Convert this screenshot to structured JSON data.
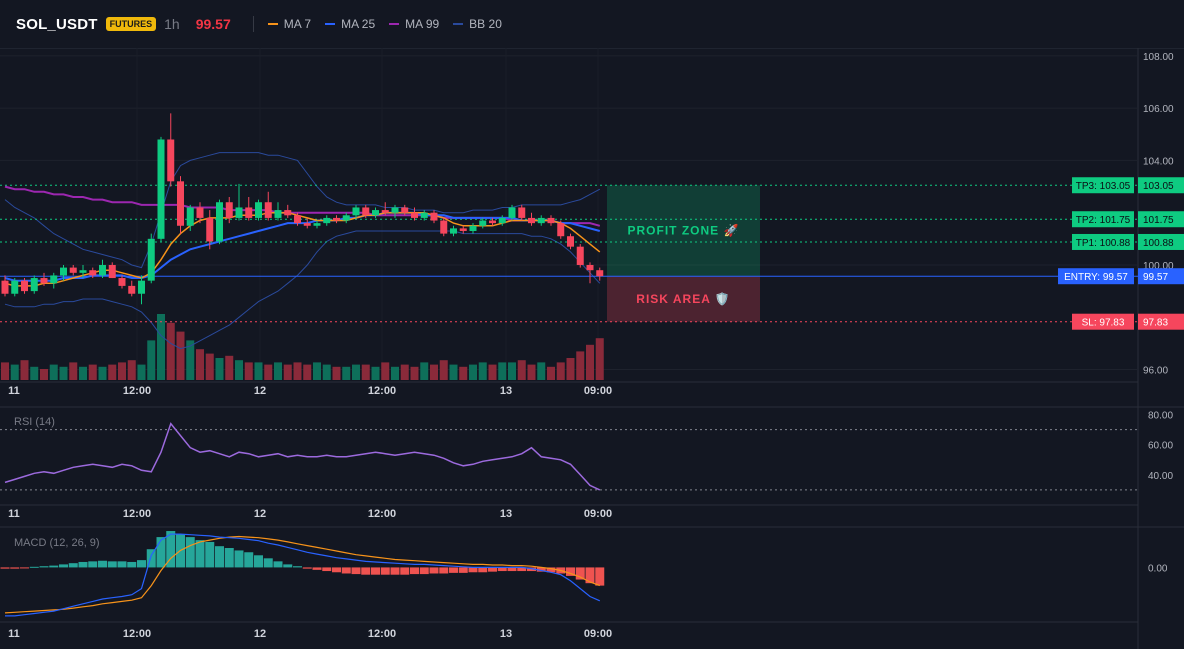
{
  "header": {
    "symbol": "SOL_USDT",
    "badge": "FUTURES",
    "interval": "1h",
    "price": "99.57",
    "legend": [
      {
        "label": "MA 7",
        "color": "#f7931a"
      },
      {
        "label": "MA 25",
        "color": "#2962ff"
      },
      {
        "label": "MA 99",
        "color": "#9c27b0"
      },
      {
        "label": "BB 20",
        "color": "#2a4a9c"
      }
    ]
  },
  "colors": {
    "up": "#0ecb81",
    "down": "#f6465d",
    "tp": "#0ecb81",
    "entry": "#2962ff",
    "sl": "#f6465d",
    "rsi": "#9c6ade",
    "macd_line": "#2962ff",
    "signal_line": "#f7931a"
  },
  "chart_data": [
    {
      "type": "candlestick",
      "price_axis_ticks": [
        "108.00",
        "106.00",
        "104.00",
        "100.00",
        "96.00"
      ],
      "ylim": [
        95.6,
        108.3
      ],
      "time_labels": [
        "11",
        "12:00",
        "12",
        "12:00",
        "13",
        "09:00"
      ],
      "candles": [
        {
          "o": 99.4,
          "h": 99.6,
          "l": 98.8,
          "c": 98.9
        },
        {
          "o": 98.9,
          "h": 99.5,
          "l": 98.8,
          "c": 99.4
        },
        {
          "o": 99.4,
          "h": 99.5,
          "l": 98.9,
          "c": 99.0
        },
        {
          "o": 99.0,
          "h": 99.6,
          "l": 98.9,
          "c": 99.5
        },
        {
          "o": 99.5,
          "h": 99.7,
          "l": 99.2,
          "c": 99.3
        },
        {
          "o": 99.3,
          "h": 99.7,
          "l": 99.1,
          "c": 99.6
        },
        {
          "o": 99.6,
          "h": 100.0,
          "l": 99.4,
          "c": 99.9
        },
        {
          "o": 99.9,
          "h": 100.0,
          "l": 99.6,
          "c": 99.7
        },
        {
          "o": 99.7,
          "h": 100.0,
          "l": 99.5,
          "c": 99.8
        },
        {
          "o": 99.8,
          "h": 99.9,
          "l": 99.5,
          "c": 99.6
        },
        {
          "o": 99.6,
          "h": 100.2,
          "l": 99.5,
          "c": 100.0
        },
        {
          "o": 100.0,
          "h": 100.1,
          "l": 99.5,
          "c": 99.5
        },
        {
          "o": 99.5,
          "h": 99.6,
          "l": 99.1,
          "c": 99.2
        },
        {
          "o": 99.2,
          "h": 99.4,
          "l": 98.8,
          "c": 98.9
        },
        {
          "o": 98.9,
          "h": 99.6,
          "l": 98.5,
          "c": 99.4
        },
        {
          "o": 99.4,
          "h": 101.2,
          "l": 99.3,
          "c": 101.0
        },
        {
          "o": 101.0,
          "h": 104.9,
          "l": 100.9,
          "c": 104.8
        },
        {
          "o": 104.8,
          "h": 105.8,
          "l": 103.0,
          "c": 103.2
        },
        {
          "o": 103.2,
          "h": 103.4,
          "l": 101.2,
          "c": 101.5
        },
        {
          "o": 101.5,
          "h": 102.3,
          "l": 101.3,
          "c": 102.2
        },
        {
          "o": 102.2,
          "h": 102.4,
          "l": 101.6,
          "c": 101.8
        },
        {
          "o": 101.8,
          "h": 102.1,
          "l": 100.6,
          "c": 100.9
        },
        {
          "o": 100.9,
          "h": 102.5,
          "l": 100.8,
          "c": 102.4
        },
        {
          "o": 102.4,
          "h": 102.6,
          "l": 101.6,
          "c": 101.8
        },
        {
          "o": 101.8,
          "h": 103.1,
          "l": 101.7,
          "c": 102.2
        },
        {
          "o": 102.2,
          "h": 102.6,
          "l": 101.7,
          "c": 101.8
        },
        {
          "o": 101.8,
          "h": 102.5,
          "l": 101.7,
          "c": 102.4
        },
        {
          "o": 102.4,
          "h": 102.8,
          "l": 101.7,
          "c": 101.8
        },
        {
          "o": 101.8,
          "h": 102.4,
          "l": 101.7,
          "c": 102.1
        },
        {
          "o": 102.1,
          "h": 102.3,
          "l": 101.8,
          "c": 101.9
        },
        {
          "o": 101.9,
          "h": 102.0,
          "l": 101.5,
          "c": 101.6
        },
        {
          "o": 101.6,
          "h": 101.8,
          "l": 101.4,
          "c": 101.5
        },
        {
          "o": 101.5,
          "h": 101.7,
          "l": 101.4,
          "c": 101.6
        },
        {
          "o": 101.6,
          "h": 101.9,
          "l": 101.5,
          "c": 101.8
        },
        {
          "o": 101.8,
          "h": 101.9,
          "l": 101.6,
          "c": 101.7
        },
        {
          "o": 101.7,
          "h": 102.0,
          "l": 101.6,
          "c": 101.9
        },
        {
          "o": 101.9,
          "h": 102.3,
          "l": 101.8,
          "c": 102.2
        },
        {
          "o": 102.2,
          "h": 102.3,
          "l": 101.8,
          "c": 101.9
        },
        {
          "o": 101.9,
          "h": 102.2,
          "l": 101.8,
          "c": 102.1
        },
        {
          "o": 102.1,
          "h": 102.4,
          "l": 101.9,
          "c": 102.0
        },
        {
          "o": 102.0,
          "h": 102.3,
          "l": 101.8,
          "c": 102.2
        },
        {
          "o": 102.2,
          "h": 102.3,
          "l": 101.9,
          "c": 102.0
        },
        {
          "o": 102.0,
          "h": 102.2,
          "l": 101.7,
          "c": 101.8
        },
        {
          "o": 101.8,
          "h": 102.1,
          "l": 101.7,
          "c": 102.0
        },
        {
          "o": 102.0,
          "h": 102.1,
          "l": 101.6,
          "c": 101.7
        },
        {
          "o": 101.7,
          "h": 101.8,
          "l": 101.1,
          "c": 101.2
        },
        {
          "o": 101.2,
          "h": 101.5,
          "l": 101.1,
          "c": 101.4
        },
        {
          "o": 101.4,
          "h": 101.5,
          "l": 101.2,
          "c": 101.3
        },
        {
          "o": 101.3,
          "h": 101.6,
          "l": 101.2,
          "c": 101.5
        },
        {
          "o": 101.5,
          "h": 101.8,
          "l": 101.4,
          "c": 101.7
        },
        {
          "o": 101.7,
          "h": 101.8,
          "l": 101.5,
          "c": 101.6
        },
        {
          "o": 101.6,
          "h": 101.9,
          "l": 101.5,
          "c": 101.8
        },
        {
          "o": 101.8,
          "h": 102.3,
          "l": 101.7,
          "c": 102.2
        },
        {
          "o": 102.2,
          "h": 102.3,
          "l": 101.7,
          "c": 101.8
        },
        {
          "o": 101.8,
          "h": 102.0,
          "l": 101.5,
          "c": 101.6
        },
        {
          "o": 101.6,
          "h": 101.9,
          "l": 101.5,
          "c": 101.8
        },
        {
          "o": 101.8,
          "h": 101.9,
          "l": 101.5,
          "c": 101.6
        },
        {
          "o": 101.6,
          "h": 101.7,
          "l": 101.0,
          "c": 101.1
        },
        {
          "o": 101.1,
          "h": 101.2,
          "l": 100.6,
          "c": 100.7
        },
        {
          "o": 100.7,
          "h": 100.8,
          "l": 99.9,
          "c": 100.0
        },
        {
          "o": 100.0,
          "h": 100.1,
          "l": 99.3,
          "c": 99.8
        },
        {
          "o": 99.8,
          "h": 99.9,
          "l": 99.4,
          "c": 99.57
        }
      ],
      "ma7": [
        99.3,
        99.2,
        99.2,
        99.2,
        99.3,
        99.3,
        99.4,
        99.5,
        99.6,
        99.7,
        99.8,
        99.8,
        99.7,
        99.6,
        99.5,
        99.7,
        100.2,
        100.8,
        101.2,
        101.5,
        101.7,
        101.8,
        101.8,
        101.8,
        101.9,
        101.9,
        101.9,
        102.0,
        102.0,
        102.0,
        101.9,
        101.8,
        101.7,
        101.7,
        101.7,
        101.7,
        101.8,
        101.9,
        101.9,
        102.0,
        102.0,
        102.0,
        102.0,
        102.0,
        101.9,
        101.8,
        101.6,
        101.5,
        101.5,
        101.5,
        101.5,
        101.6,
        101.7,
        101.7,
        101.7,
        101.7,
        101.7,
        101.6,
        101.4,
        101.1,
        100.8,
        100.5
      ],
      "ma25": [
        99.5,
        99.4,
        99.4,
        99.4,
        99.4,
        99.4,
        99.5,
        99.5,
        99.5,
        99.6,
        99.6,
        99.6,
        99.6,
        99.5,
        99.5,
        99.6,
        99.9,
        100.2,
        100.4,
        100.6,
        100.7,
        100.8,
        100.9,
        101.0,
        101.1,
        101.2,
        101.3,
        101.4,
        101.5,
        101.6,
        101.6,
        101.6,
        101.7,
        101.7,
        101.7,
        101.8,
        101.8,
        101.9,
        101.9,
        102.0,
        102.0,
        102.0,
        102.0,
        101.9,
        101.9,
        101.9,
        101.8,
        101.8,
        101.8,
        101.8,
        101.8,
        101.8,
        101.8,
        101.7,
        101.7,
        101.7,
        101.7,
        101.6,
        101.6,
        101.5,
        101.4,
        101.3
      ],
      "ma99": [
        103.0,
        102.9,
        102.9,
        102.8,
        102.8,
        102.7,
        102.7,
        102.6,
        102.6,
        102.5,
        102.5,
        102.4,
        102.4,
        102.4,
        102.3,
        102.3,
        102.3,
        102.3,
        102.3,
        102.2,
        102.2,
        102.2,
        102.2,
        102.1,
        102.1,
        102.1,
        102.1,
        102.1,
        102.0,
        102.0,
        102.0,
        102.0,
        102.0,
        102.0,
        102.0,
        102.0,
        102.0,
        102.0,
        101.9,
        101.9,
        101.9,
        101.9,
        101.9,
        101.9,
        101.9,
        101.8,
        101.8,
        101.8,
        101.8,
        101.8,
        101.8,
        101.8,
        101.7,
        101.7,
        101.7,
        101.7,
        101.7,
        101.6,
        101.6,
        101.6,
        101.6,
        101.5
      ],
      "bb_upper": [
        102.5,
        102.2,
        102.0,
        101.8,
        101.5,
        101.2,
        101.0,
        100.8,
        100.6,
        100.5,
        100.4,
        100.3,
        100.2,
        100.0,
        99.9,
        100.8,
        102.0,
        103.2,
        103.8,
        104.0,
        104.1,
        104.2,
        104.3,
        104.3,
        104.3,
        104.3,
        104.3,
        104.2,
        104.2,
        104.1,
        104.0,
        103.5,
        103.0,
        102.6,
        102.4,
        102.3,
        102.3,
        102.3,
        102.3,
        102.2,
        102.2,
        102.2,
        102.1,
        102.1,
        102.1,
        102.0,
        102.0,
        102.0,
        102.1,
        102.1,
        102.1,
        102.2,
        102.2,
        102.3,
        102.3,
        102.3,
        102.3,
        102.3,
        102.4,
        102.5,
        102.7,
        102.9
      ],
      "bb_lower": [
        98.5,
        98.4,
        98.4,
        98.4,
        98.5,
        98.5,
        98.6,
        98.6,
        98.7,
        98.7,
        98.7,
        98.6,
        98.5,
        98.4,
        98.2,
        97.8,
        97.3,
        97.0,
        96.8,
        96.9,
        97.1,
        97.3,
        97.5,
        97.7,
        98.0,
        98.3,
        98.6,
        98.8,
        99.0,
        99.3,
        99.6,
        100.0,
        100.5,
        100.9,
        101.1,
        101.2,
        101.3,
        101.3,
        101.3,
        101.3,
        101.3,
        101.3,
        101.3,
        101.3,
        101.3,
        101.3,
        101.3,
        101.2,
        101.2,
        101.2,
        101.2,
        101.2,
        101.2,
        101.2,
        101.1,
        101.1,
        101.0,
        100.8,
        100.5,
        100.1,
        99.7,
        99.3
      ],
      "volume": [
        8,
        7,
        9,
        6,
        5,
        7,
        6,
        8,
        6,
        7,
        6,
        7,
        8,
        9,
        7,
        18,
        30,
        26,
        22,
        18,
        14,
        12,
        10,
        11,
        9,
        8,
        8,
        7,
        8,
        7,
        8,
        7,
        8,
        7,
        6,
        6,
        7,
        7,
        6,
        8,
        6,
        7,
        6,
        8,
        7,
        9,
        7,
        6,
        7,
        8,
        7,
        8,
        8,
        9,
        7,
        8,
        6,
        8,
        10,
        13,
        16,
        19
      ]
    },
    {
      "type": "line",
      "title": "RSI (14)",
      "y_ticks": [
        "80.00",
        "60.00",
        "40.00"
      ],
      "ylim": [
        20,
        85
      ],
      "levels": [
        70,
        30
      ],
      "values": [
        35,
        37,
        39,
        41,
        42,
        41,
        43,
        45,
        46,
        47,
        46,
        45,
        47,
        46,
        43,
        42,
        55,
        74,
        66,
        58,
        55,
        56,
        54,
        52,
        55,
        54,
        52,
        53,
        54,
        52,
        53,
        52,
        52,
        53,
        52,
        52,
        53,
        54,
        55,
        54,
        53,
        54,
        55,
        54,
        53,
        51,
        48,
        46,
        47,
        49,
        50,
        51,
        52,
        54,
        58,
        52,
        51,
        50,
        47,
        40,
        33,
        30
      ]
    },
    {
      "type": "bar+line",
      "title": "MACD (12, 26, 9)",
      "y_ticks": [
        "0.00"
      ],
      "ylim": [
        -0.9,
        0.65
      ],
      "histogram": [
        -0.02,
        -0.02,
        -0.01,
        0.01,
        0.02,
        0.03,
        0.05,
        0.07,
        0.09,
        0.1,
        0.11,
        0.1,
        0.1,
        0.09,
        0.12,
        0.3,
        0.5,
        0.6,
        0.55,
        0.5,
        0.45,
        0.42,
        0.35,
        0.32,
        0.28,
        0.25,
        0.2,
        0.15,
        0.1,
        0.05,
        0.02,
        -0.02,
        -0.04,
        -0.06,
        -0.08,
        -0.1,
        -0.11,
        -0.12,
        -0.12,
        -0.12,
        -0.12,
        -0.12,
        -0.11,
        -0.11,
        -0.1,
        -0.1,
        -0.09,
        -0.09,
        -0.08,
        -0.08,
        -0.07,
        -0.06,
        -0.06,
        -0.06,
        -0.06,
        -0.07,
        -0.08,
        -0.1,
        -0.14,
        -0.2,
        -0.26,
        -0.3
      ],
      "macd": [
        -0.8,
        -0.8,
        -0.78,
        -0.76,
        -0.74,
        -0.72,
        -0.68,
        -0.64,
        -0.6,
        -0.56,
        -0.52,
        -0.5,
        -0.48,
        -0.45,
        -0.35,
        0.2,
        0.45,
        0.55,
        0.55,
        0.54,
        0.53,
        0.52,
        0.5,
        0.49,
        0.48,
        0.46,
        0.44,
        0.4,
        0.37,
        0.33,
        0.29,
        0.25,
        0.22,
        0.19,
        0.16,
        0.14,
        0.12,
        0.1,
        0.09,
        0.08,
        0.07,
        0.06,
        0.05,
        0.05,
        0.04,
        0.03,
        0.02,
        0.01,
        0.0,
        0.0,
        0.0,
        0.0,
        0.0,
        0.0,
        -0.02,
        -0.05,
        -0.08,
        -0.12,
        -0.22,
        -0.35,
        -0.48,
        -0.55
      ],
      "signal": [
        -0.75,
        -0.74,
        -0.73,
        -0.72,
        -0.71,
        -0.7,
        -0.69,
        -0.67,
        -0.65,
        -0.63,
        -0.6,
        -0.58,
        -0.56,
        -0.54,
        -0.5,
        -0.3,
        -0.05,
        0.15,
        0.28,
        0.36,
        0.42,
        0.45,
        0.48,
        0.5,
        0.51,
        0.5,
        0.49,
        0.47,
        0.45,
        0.42,
        0.39,
        0.36,
        0.33,
        0.3,
        0.27,
        0.24,
        0.21,
        0.19,
        0.17,
        0.15,
        0.13,
        0.12,
        0.11,
        0.1,
        0.09,
        0.08,
        0.07,
        0.06,
        0.05,
        0.05,
        0.04,
        0.04,
        0.03,
        0.03,
        0.02,
        0.0,
        -0.02,
        -0.05,
        -0.1,
        -0.16,
        -0.24,
        -0.3
      ]
    }
  ],
  "trade_levels": {
    "tp3": {
      "label": "TP3: 103.05",
      "axis": "103.05",
      "value": 103.05
    },
    "tp2": {
      "label": "TP2: 101.75",
      "axis": "101.75",
      "value": 101.75
    },
    "tp1": {
      "label": "TP1: 100.88",
      "axis": "100.88",
      "value": 100.88
    },
    "entry": {
      "label": "ENTRY: 99.57",
      "axis": "99.57",
      "value": 99.57
    },
    "sl": {
      "label": "SL: 97.83",
      "axis": "97.83",
      "value": 97.83
    }
  },
  "zones": {
    "profit_label": "PROFIT ZONE 🚀",
    "risk_label": "RISK AREA 🛡️"
  }
}
